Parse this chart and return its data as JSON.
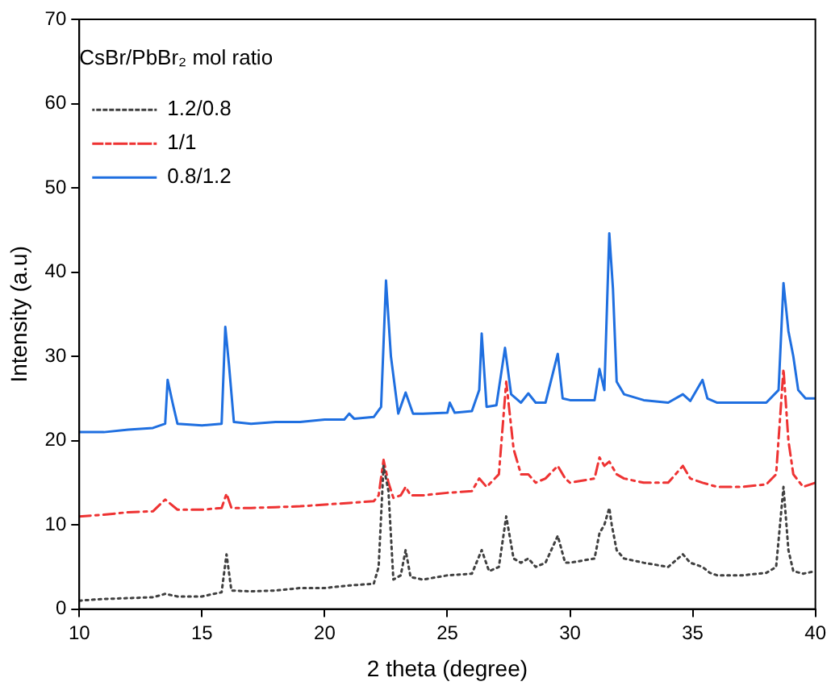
{
  "chart_data": {
    "type": "line",
    "xlabel": "2 theta (degree)",
    "ylabel": "Intensity (a.u)",
    "legend_title": "CsBr/PbBr₂ mol ratio",
    "legend": "top left",
    "grid": false,
    "marker": "none",
    "xlim": [
      10,
      40
    ],
    "ylim": [
      0,
      70
    ],
    "xticks": [
      10,
      15,
      20,
      25,
      30,
      35,
      40
    ],
    "yticks": [
      0,
      10,
      20,
      30,
      40,
      50,
      60,
      70
    ],
    "series": [
      {
        "name": "1.2/0.8",
        "color": "#404040",
        "line_style": "dotted",
        "x": [
          10,
          11,
          12,
          13,
          13.5,
          14,
          15,
          15.8,
          16.0,
          16.2,
          17,
          18,
          19,
          20,
          21,
          22,
          22.2,
          22.4,
          22.6,
          22.8,
          23.1,
          23.3,
          23.5,
          24,
          25,
          26,
          26.4,
          26.7,
          27.1,
          27.4,
          27.7,
          28,
          28.3,
          28.6,
          29,
          29.5,
          29.8,
          30,
          31,
          31.2,
          31.4,
          31.6,
          31.7,
          31.9,
          32.2,
          33,
          34,
          34.6,
          34.9,
          35.4,
          35.7,
          36,
          37,
          38,
          38.4,
          38.7,
          38.9,
          39.1,
          39.5,
          40
        ],
        "values": [
          1,
          1.2,
          1.3,
          1.4,
          1.8,
          1.5,
          1.5,
          2,
          6.5,
          2.2,
          2.1,
          2.2,
          2.5,
          2.5,
          2.8,
          3,
          5,
          17,
          14,
          3.5,
          4,
          7,
          3.8,
          3.5,
          4,
          4.2,
          7,
          4.5,
          5,
          11,
          6,
          5.5,
          6,
          5,
          5.5,
          8.7,
          5.5,
          5.5,
          6,
          9,
          10,
          12,
          10,
          7,
          6,
          5.5,
          5,
          6.5,
          5.5,
          5,
          4.3,
          4,
          4,
          4.3,
          5,
          14.5,
          7,
          4.5,
          4.2,
          4.5
        ]
      },
      {
        "name": "1/1",
        "color": "#ee3333",
        "line_style": "dashdot",
        "x": [
          10,
          11,
          12,
          13,
          13.5,
          14,
          15,
          15.8,
          16.0,
          16.2,
          17,
          18,
          19,
          20,
          21,
          22,
          22.2,
          22.4,
          22.6,
          22.8,
          23.1,
          23.3,
          23.5,
          24,
          25,
          26,
          26.3,
          26.6,
          27.1,
          27.4,
          27.7,
          28,
          28.3,
          28.6,
          29,
          29.5,
          29.8,
          30,
          31,
          31.2,
          31.4,
          31.6,
          31.9,
          32.2,
          33,
          34,
          34.6,
          34.9,
          35.4,
          36,
          37,
          38,
          38.4,
          38.7,
          38.9,
          39.1,
          39.5,
          40
        ],
        "values": [
          11,
          11.2,
          11.5,
          11.6,
          13,
          11.8,
          11.8,
          12,
          13.7,
          12,
          12,
          12.1,
          12.2,
          12.4,
          12.6,
          12.8,
          13.5,
          17.7,
          15,
          13.2,
          13.5,
          14.5,
          13.5,
          13.5,
          13.8,
          14,
          15.5,
          14.5,
          16,
          27,
          19,
          16,
          16,
          15,
          15.5,
          17,
          15.5,
          15,
          15.5,
          18,
          17,
          17.5,
          16,
          15.5,
          15,
          15,
          17,
          15.5,
          15,
          14.5,
          14.5,
          14.8,
          16,
          28.5,
          20,
          16,
          14.5,
          15
        ]
      },
      {
        "name": "0.8/1.2",
        "color": "#1f6fe0",
        "line_style": "solid",
        "x": [
          10,
          11,
          12,
          13,
          13.5,
          13.6,
          13.8,
          14,
          15,
          15.8,
          15.95,
          16.1,
          16.3,
          17,
          18,
          19,
          20,
          20.8,
          21,
          21.2,
          22,
          22.3,
          22.5,
          22.7,
          23,
          23.3,
          23.6,
          24,
          25,
          25.1,
          25.3,
          26,
          26.3,
          26.4,
          26.6,
          27,
          27.35,
          27.6,
          28,
          28.3,
          28.6,
          29,
          29.5,
          29.7,
          30,
          31,
          31.2,
          31.4,
          31.6,
          31.75,
          31.9,
          32.2,
          33,
          34,
          34.6,
          34.9,
          35.4,
          35.6,
          36,
          37,
          38,
          38.5,
          38.7,
          38.9,
          39.1,
          39.3,
          39.6,
          40
        ],
        "values": [
          21,
          21,
          21.3,
          21.5,
          22,
          27.2,
          24.5,
          22,
          21.8,
          22,
          33.5,
          29,
          22.2,
          22,
          22.2,
          22.2,
          22.5,
          22.5,
          23.2,
          22.6,
          22.8,
          24,
          39,
          30,
          23.2,
          25.7,
          23.2,
          23.2,
          23.3,
          24.5,
          23.3,
          23.5,
          26,
          32.7,
          24,
          24.2,
          31,
          25.5,
          24.5,
          25.6,
          24.5,
          24.5,
          30.3,
          25,
          24.8,
          24.8,
          28.5,
          26,
          44.6,
          38,
          27,
          25.5,
          24.8,
          24.5,
          25.5,
          24.7,
          27.2,
          25,
          24.5,
          24.5,
          24.5,
          26,
          38.7,
          33,
          30,
          26,
          25,
          25
        ]
      }
    ]
  }
}
